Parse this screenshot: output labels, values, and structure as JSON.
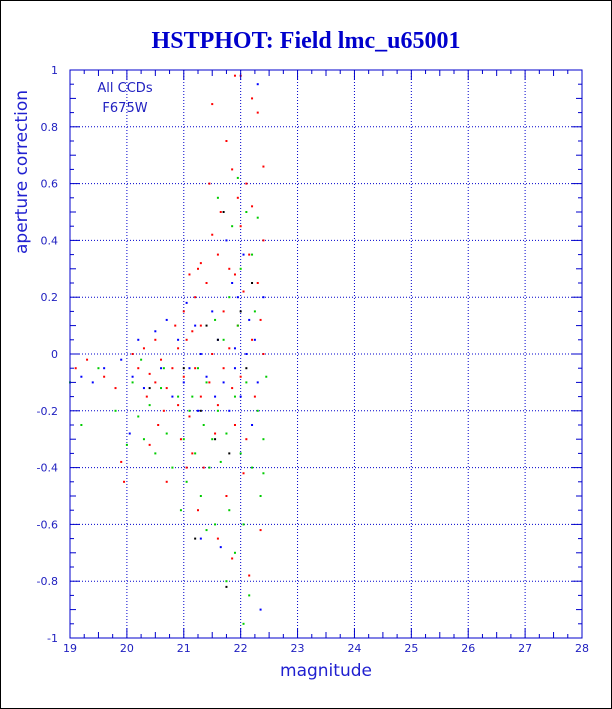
{
  "chart_data": {
    "type": "scatter",
    "title": "HSTPHOT: Field lmc_u65001",
    "xlabel": "magnitude",
    "ylabel": "aperture correction",
    "xlim": [
      19,
      28
    ],
    "ylim": [
      -1,
      1
    ],
    "x_ticks": [
      19,
      20,
      21,
      22,
      23,
      24,
      25,
      26,
      27,
      28
    ],
    "y_ticks": [
      -1,
      -0.8,
      -0.6,
      -0.4,
      -0.2,
      0,
      0.2,
      0.4,
      0.6,
      0.8,
      1
    ],
    "grid": true,
    "annotations": [
      "All CCDs",
      "F675W"
    ],
    "colors": {
      "axis": "#0000cc",
      "grid": "#0000cc",
      "title": "#0000cc",
      "point_colors": [
        "#ff0000",
        "#00cc00",
        "#0000ff",
        "#000000"
      ]
    },
    "series": [
      {
        "color": "#ff0000",
        "points": [
          [
            19.1,
            -0.05
          ],
          [
            19.3,
            -0.02
          ],
          [
            19.6,
            -0.08
          ],
          [
            19.8,
            -0.12
          ],
          [
            19.9,
            -0.38
          ],
          [
            19.95,
            -0.45
          ],
          [
            20.1,
            0.0
          ],
          [
            20.2,
            -0.05
          ],
          [
            20.3,
            0.02
          ],
          [
            20.35,
            -0.15
          ],
          [
            20.4,
            -0.07
          ],
          [
            20.5,
            -0.1
          ],
          [
            20.5,
            0.05
          ],
          [
            20.6,
            -0.02
          ],
          [
            20.65,
            -0.2
          ],
          [
            20.7,
            -0.12
          ],
          [
            20.8,
            -0.05
          ],
          [
            20.85,
            0.1
          ],
          [
            20.9,
            -0.18
          ],
          [
            20.95,
            -0.3
          ],
          [
            21.0,
            0.15
          ],
          [
            21.0,
            -0.08
          ],
          [
            21.05,
            0.05
          ],
          [
            21.1,
            -0.22
          ],
          [
            21.15,
            -0.35
          ],
          [
            21.2,
            0.2
          ],
          [
            21.2,
            -0.05
          ],
          [
            21.25,
            0.3
          ],
          [
            21.3,
            -0.15
          ],
          [
            21.3,
            0.1
          ],
          [
            21.35,
            -0.4
          ],
          [
            21.4,
            0.25
          ],
          [
            21.45,
            -0.1
          ],
          [
            21.5,
            0.42
          ],
          [
            21.5,
            0.0
          ],
          [
            21.55,
            -0.28
          ],
          [
            21.6,
            0.35
          ],
          [
            21.6,
            -0.18
          ],
          [
            21.65,
            0.5
          ],
          [
            21.7,
            0.15
          ],
          [
            21.7,
            -0.05
          ],
          [
            21.75,
            0.75
          ],
          [
            21.75,
            -0.5
          ],
          [
            21.8,
            0.3
          ],
          [
            21.8,
            0.02
          ],
          [
            21.85,
            0.65
          ],
          [
            21.85,
            -0.12
          ],
          [
            21.9,
            0.28
          ],
          [
            21.9,
            -0.25
          ],
          [
            21.95,
            0.55
          ],
          [
            21.95,
            0.1
          ],
          [
            22.0,
            0.98
          ],
          [
            22.0,
            0.45
          ],
          [
            22.0,
            -0.08
          ],
          [
            22.05,
            0.22
          ],
          [
            22.1,
            0.6
          ],
          [
            22.1,
            -0.3
          ],
          [
            22.15,
            0.35
          ],
          [
            22.2,
            0.05
          ],
          [
            22.2,
            0.52
          ],
          [
            22.25,
            -0.15
          ],
          [
            22.3,
            0.25
          ],
          [
            22.3,
            0.85
          ],
          [
            22.35,
            0.12
          ],
          [
            22.4,
            0.0
          ],
          [
            22.4,
            0.4
          ],
          [
            21.1,
            0.28
          ],
          [
            21.3,
            0.32
          ],
          [
            21.5,
            0.88
          ],
          [
            21.9,
            0.98
          ],
          [
            22.2,
            0.9
          ],
          [
            20.7,
            -0.45
          ],
          [
            21.25,
            -0.55
          ],
          [
            21.6,
            -0.65
          ],
          [
            21.85,
            -0.72
          ],
          [
            22.15,
            -0.78
          ],
          [
            22.35,
            -0.62
          ],
          [
            20.4,
            -0.32
          ],
          [
            20.9,
            0.02
          ],
          [
            21.15,
            0.08
          ],
          [
            22.05,
            -0.42
          ],
          [
            21.45,
            0.6
          ],
          [
            22.4,
            0.66
          ],
          [
            20.55,
            -0.25
          ],
          [
            21.05,
            -0.4
          ]
        ]
      },
      {
        "color": "#00cc00",
        "points": [
          [
            19.0,
            -0.1
          ],
          [
            19.2,
            -0.25
          ],
          [
            19.5,
            -0.05
          ],
          [
            19.8,
            -0.2
          ],
          [
            20.0,
            -0.32
          ],
          [
            20.1,
            -0.1
          ],
          [
            20.2,
            -0.22
          ],
          [
            20.3,
            -0.3
          ],
          [
            20.4,
            -0.18
          ],
          [
            20.5,
            -0.35
          ],
          [
            20.6,
            -0.12
          ],
          [
            20.7,
            -0.28
          ],
          [
            20.8,
            -0.4
          ],
          [
            20.9,
            -0.15
          ],
          [
            21.0,
            -0.3
          ],
          [
            21.05,
            -0.45
          ],
          [
            21.1,
            -0.2
          ],
          [
            21.2,
            -0.35
          ],
          [
            21.25,
            -0.05
          ],
          [
            21.3,
            -0.5
          ],
          [
            21.35,
            -0.25
          ],
          [
            21.4,
            -0.1
          ],
          [
            21.45,
            -0.4
          ],
          [
            21.5,
            -0.3
          ],
          [
            21.55,
            -0.6
          ],
          [
            21.6,
            -0.2
          ],
          [
            21.65,
            -0.38
          ],
          [
            21.7,
            0.05
          ],
          [
            21.75,
            -0.28
          ],
          [
            21.8,
            0.2
          ],
          [
            21.8,
            -0.55
          ],
          [
            21.85,
            0.45
          ],
          [
            21.9,
            -0.15
          ],
          [
            21.9,
            -0.7
          ],
          [
            21.95,
            0.1
          ],
          [
            22.0,
            -0.35
          ],
          [
            22.0,
            0.3
          ],
          [
            22.05,
            -0.6
          ],
          [
            22.1,
            0.5
          ],
          [
            22.1,
            -0.1
          ],
          [
            22.15,
            -0.85
          ],
          [
            22.2,
            0.35
          ],
          [
            22.2,
            -0.4
          ],
          [
            22.25,
            0.15
          ],
          [
            22.3,
            -0.2
          ],
          [
            22.35,
            -0.5
          ],
          [
            22.4,
            -0.3
          ],
          [
            22.45,
            -0.08
          ],
          [
            21.6,
            0.55
          ],
          [
            21.95,
            0.62
          ],
          [
            22.3,
            0.48
          ],
          [
            21.4,
            -0.62
          ],
          [
            21.75,
            -0.8
          ],
          [
            22.05,
            -0.95
          ],
          [
            20.95,
            -0.55
          ],
          [
            21.15,
            -0.15
          ],
          [
            20.65,
            -0.05
          ],
          [
            20.25,
            -0.02
          ],
          [
            21.55,
            0.12
          ],
          [
            22.4,
            -0.42
          ]
        ]
      },
      {
        "color": "#0000ff",
        "points": [
          [
            19.2,
            -0.08
          ],
          [
            19.4,
            -0.1
          ],
          [
            19.6,
            -0.05
          ],
          [
            19.9,
            -0.02
          ],
          [
            20.1,
            -0.08
          ],
          [
            20.2,
            0.05
          ],
          [
            20.3,
            -0.12
          ],
          [
            20.5,
            0.08
          ],
          [
            20.6,
            -0.05
          ],
          [
            20.7,
            0.12
          ],
          [
            20.8,
            -0.15
          ],
          [
            20.9,
            0.05
          ],
          [
            21.0,
            -0.1
          ],
          [
            21.05,
            0.18
          ],
          [
            21.1,
            -0.05
          ],
          [
            21.2,
            0.1
          ],
          [
            21.25,
            -0.2
          ],
          [
            21.3,
            0.0
          ],
          [
            21.4,
            -0.08
          ],
          [
            21.5,
            0.15
          ],
          [
            21.55,
            -0.15
          ],
          [
            21.6,
            0.05
          ],
          [
            21.7,
            -0.1
          ],
          [
            21.75,
            0.4
          ],
          [
            21.8,
            -0.2
          ],
          [
            21.85,
            0.25
          ],
          [
            21.9,
            -0.05
          ],
          [
            21.95,
            0.2
          ],
          [
            22.0,
            -0.15
          ],
          [
            22.05,
            0.35
          ],
          [
            22.1,
            0.0
          ],
          [
            22.15,
            0.12
          ],
          [
            22.2,
            -0.25
          ],
          [
            22.25,
            0.05
          ],
          [
            22.3,
            -0.1
          ],
          [
            22.3,
            0.95
          ],
          [
            21.65,
            -0.68
          ],
          [
            22.35,
            -0.9
          ],
          [
            21.3,
            -0.65
          ],
          [
            20.05,
            -0.28
          ],
          [
            21.9,
            0.02
          ],
          [
            22.4,
            0.2
          ]
        ]
      },
      {
        "color": "#000000",
        "points": [
          [
            20.4,
            -0.12
          ],
          [
            21.0,
            -0.05
          ],
          [
            21.3,
            -0.2
          ],
          [
            21.4,
            0.1
          ],
          [
            21.6,
            0.05
          ],
          [
            21.7,
            0.5
          ],
          [
            21.8,
            -0.35
          ],
          [
            22.0,
            0.15
          ],
          [
            22.1,
            -0.05
          ],
          [
            21.2,
            -0.65
          ],
          [
            21.55,
            -0.3
          ],
          [
            22.2,
            0.25
          ],
          [
            21.75,
            -0.82
          ]
        ]
      }
    ]
  }
}
